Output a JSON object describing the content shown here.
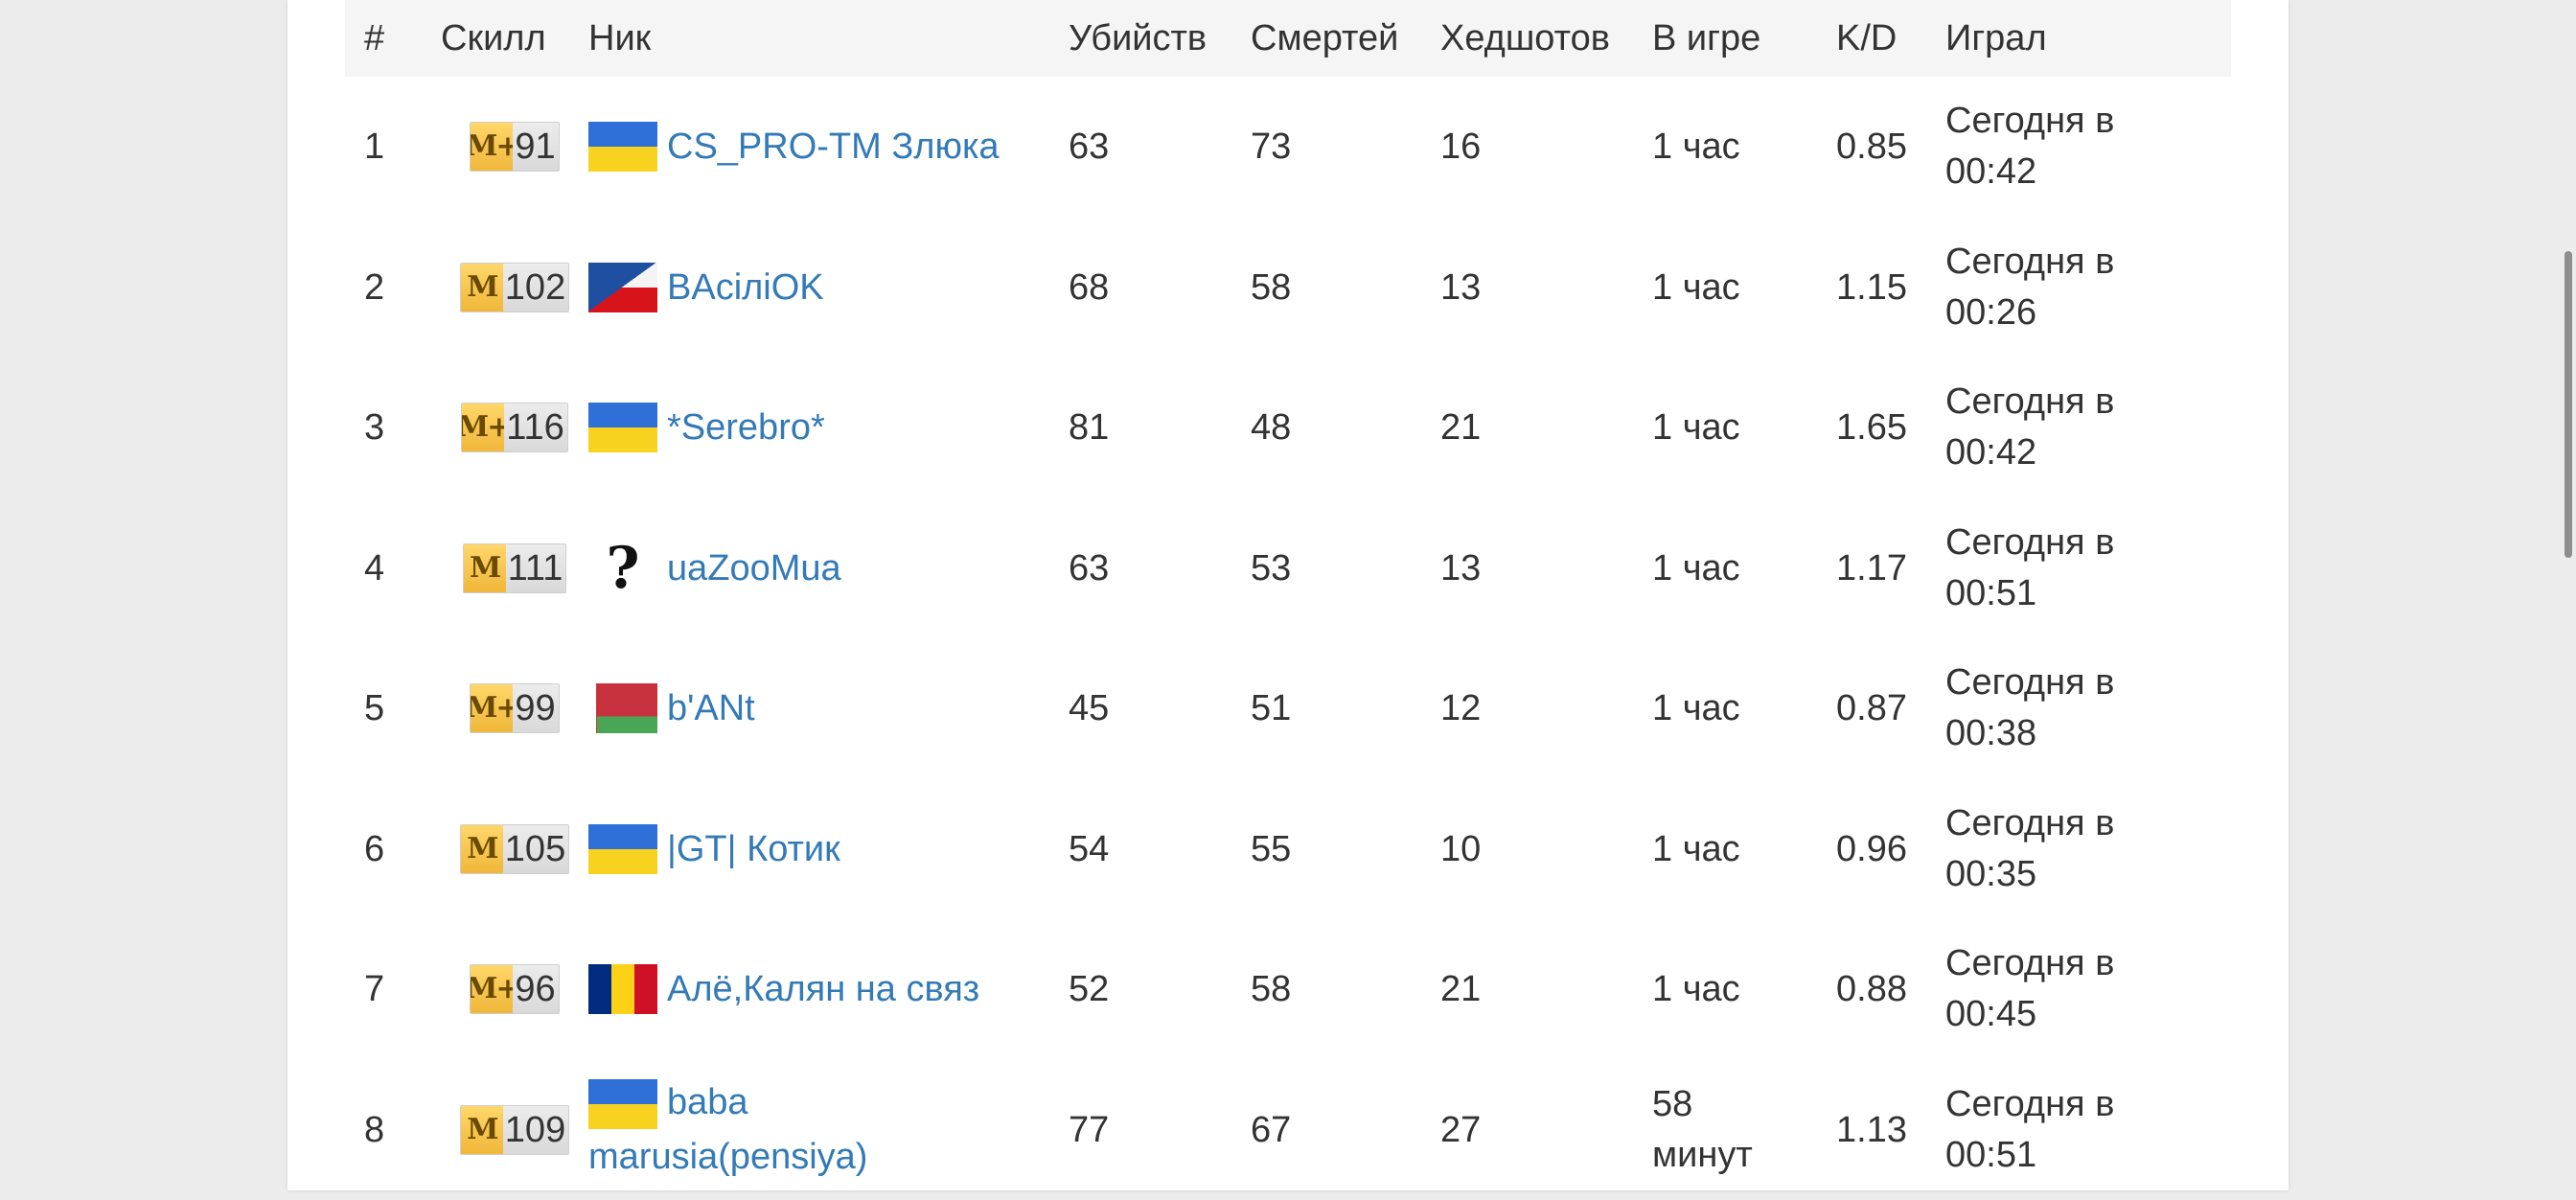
{
  "header": {
    "num": "#",
    "skill": "Скилл",
    "nick": "Ник",
    "kills": "Убийств",
    "deaths": "Смертей",
    "headshots": "Хедшотов",
    "ingame": "В игре",
    "kd": "K/D",
    "played": "Играл"
  },
  "skill_badge_letter": "M",
  "rows": [
    {
      "num": "1",
      "skill_letter": "M+",
      "skill": "91",
      "flag": "flag-ua",
      "nick": "CS_PRO-TM Злюка",
      "kills": "63",
      "deaths": "73",
      "headshots": "16",
      "ingame": "1 час",
      "kd": "0.85",
      "played_line1": "Сегодня в",
      "played_line2": "00:42"
    },
    {
      "num": "2",
      "skill_letter": "M",
      "skill": "102",
      "flag": "flag-cz",
      "nick": "BAcіліOK",
      "kills": "68",
      "deaths": "58",
      "headshots": "13",
      "ingame": "1 час",
      "kd": "1.15",
      "played_line1": "Сегодня в",
      "played_line2": "00:26"
    },
    {
      "num": "3",
      "skill_letter": "M+",
      "skill": "116",
      "flag": "flag-ua",
      "nick": "*Serebro*",
      "kills": "81",
      "deaths": "48",
      "headshots": "21",
      "ingame": "1 час",
      "kd": "1.65",
      "played_line1": "Сегодня в",
      "played_line2": "00:42"
    },
    {
      "num": "4",
      "skill_letter": "M",
      "skill": "111",
      "flag": "flag-unknown",
      "nick": "uaZooMua",
      "kills": "63",
      "deaths": "53",
      "headshots": "13",
      "ingame": "1 час",
      "kd": "1.17",
      "played_line1": "Сегодня в",
      "played_line2": "00:51"
    },
    {
      "num": "5",
      "skill_letter": "M+",
      "skill": "99",
      "flag": "flag-by",
      "nick": "b'ANt",
      "kills": "45",
      "deaths": "51",
      "headshots": "12",
      "ingame": "1 час",
      "kd": "0.87",
      "played_line1": "Сегодня в",
      "played_line2": "00:38"
    },
    {
      "num": "6",
      "skill_letter": "M",
      "skill": "105",
      "flag": "flag-ua",
      "nick": "|GT| Котик",
      "kills": "54",
      "deaths": "55",
      "headshots": "10",
      "ingame": "1 час",
      "kd": "0.96",
      "played_line1": "Сегодня в",
      "played_line2": "00:35"
    },
    {
      "num": "7",
      "skill_letter": "M+",
      "skill": "96",
      "flag": "flag-ro",
      "nick": "Алё,Калян на связ",
      "kills": "52",
      "deaths": "58",
      "headshots": "21",
      "ingame": "1 час",
      "kd": "0.88",
      "played_line1": "Сегодня в",
      "played_line2": "00:45"
    },
    {
      "num": "8",
      "skill_letter": "M",
      "skill": "109",
      "flag": "flag-ua",
      "nick": "baba marusia(pensiya)",
      "nick_line1": "baba",
      "nick_line2": "marusia(pensiya)",
      "kills": "77",
      "deaths": "67",
      "headshots": "27",
      "ingame_line1": "58",
      "ingame_line2": "минут",
      "kd": "1.13",
      "played_line1": "Сегодня в",
      "played_line2": "00:51"
    }
  ]
}
